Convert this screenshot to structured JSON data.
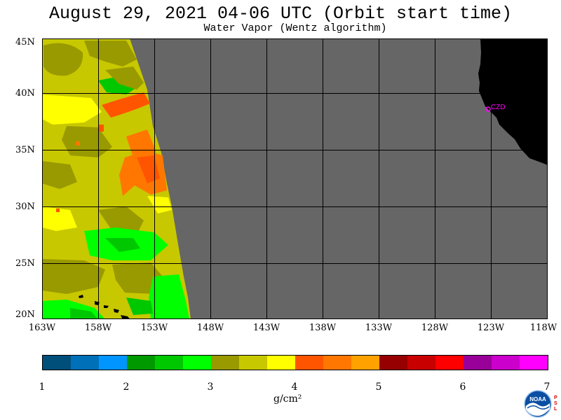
{
  "title": "August 29, 2021  04-06 UTC  (Orbit start time)",
  "subtitle": "Water Vapor (Wentz algorithm)",
  "map": {
    "lat_labels": [
      "45N",
      "40N",
      "35N",
      "30N",
      "25N",
      "20N"
    ],
    "lon_labels": [
      "163W",
      "158W",
      "153W",
      "148W",
      "143W",
      "138W",
      "133W",
      "128W",
      "123W",
      "118W"
    ],
    "station_label": "CZD",
    "colors": {
      "no_data": "#666666",
      "land": "#000000",
      "grid": "#000000",
      "station": "#ff00ff"
    }
  },
  "colorbar": {
    "tick_labels": [
      "1",
      "2",
      "3",
      "4",
      "5",
      "6",
      "7"
    ],
    "unit": "g/cm²",
    "colors": [
      "#004f7a",
      "#0070b8",
      "#0095ff",
      "#009900",
      "#00c800",
      "#00ff00",
      "#999900",
      "#c8c800",
      "#ffff00",
      "#ff5500",
      "#ff7700",
      "#ffa200",
      "#960000",
      "#c80000",
      "#ff0000",
      "#990099",
      "#cc00cc",
      "#ff00ff"
    ]
  },
  "logo": {
    "name": "noaa-logo",
    "text": "NOAA",
    "side_text": "PSL"
  }
}
